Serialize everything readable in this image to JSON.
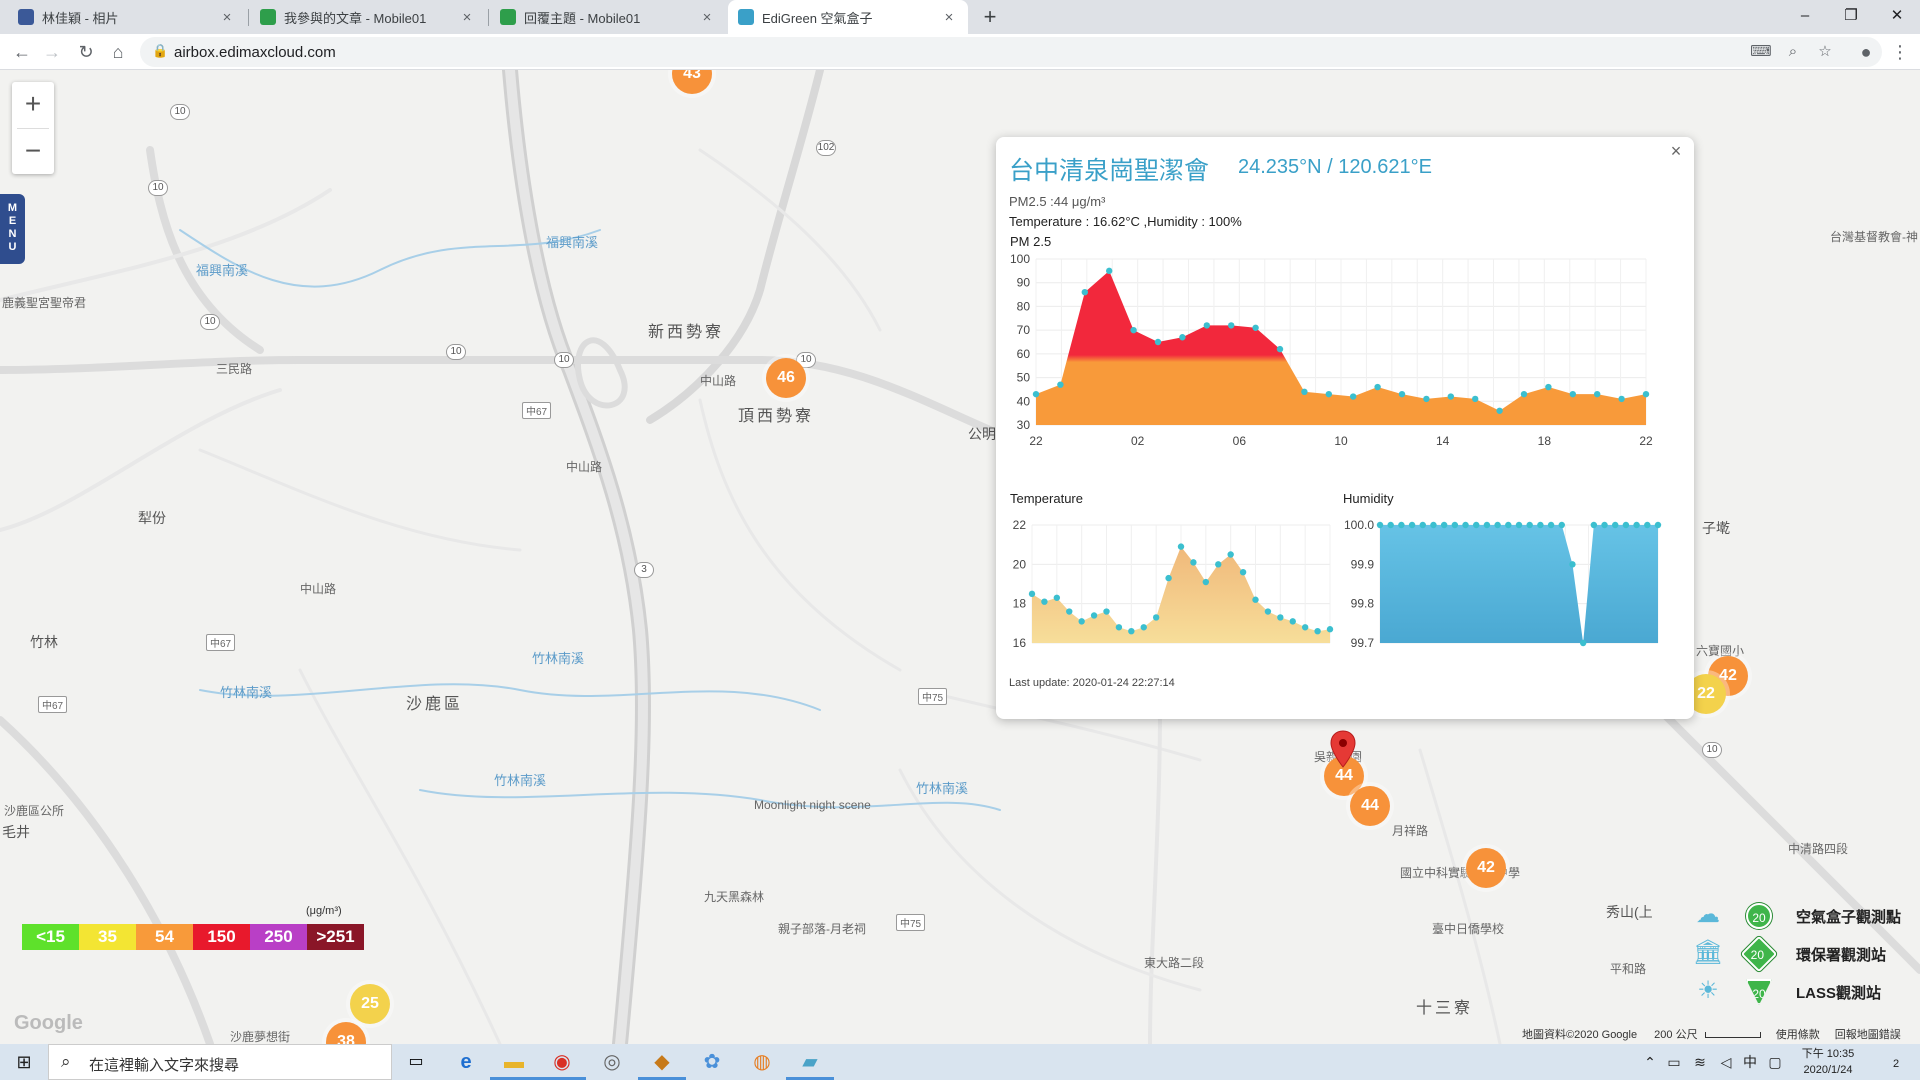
{
  "browser": {
    "tabs": [
      {
        "title": "林佳穎 - 相片",
        "favicon_color": "#3b5998",
        "active": false
      },
      {
        "title": "我參與的文章 - Mobile01",
        "favicon_color": "#2e9e4b",
        "active": false
      },
      {
        "title": "回覆主題 - Mobile01",
        "favicon_color": "#2e9e4b",
        "active": false
      },
      {
        "title": "EdiGreen 空氣盒子",
        "favicon_color": "#3aa0c8",
        "active": true
      }
    ],
    "tab_close": "×",
    "new_tab": "+",
    "url": "airbox.edimaxcloud.com",
    "window_controls": {
      "minimize": "–",
      "restore": "❐",
      "close": "✕"
    }
  },
  "map": {
    "zoom_in": "+",
    "zoom_out": "−",
    "menu_label": "MENU",
    "labels": {
      "area_1": "新西勢寮",
      "area_2": "頂西勢寮",
      "area_3": "沙鹿區",
      "area_4": "犁份",
      "area_5": "竹林",
      "area_6": "毛井",
      "area_7": "十三寮",
      "area_8": "秀山(上",
      "area_9": "子墘",
      "area_10": "公明",
      "river_1": "竹林南溪",
      "river_2": "竹林南溪",
      "river_3": "竹林南溪",
      "river_4": "竹林南溪",
      "river_5": "福興南溪",
      "river_6": "福興南溪",
      "place_1": "鹿義聖宮聖帝君",
      "place_2": "沙鹿區公所",
      "place_3": "Moonlight night scene",
      "place_4": "九天黑森林",
      "place_5": "親子部落-月老祠",
      "place_6": "國立中科實驗高級中學",
      "place_7": "臺中日僑學校",
      "place_8": "台灣基督教會-神",
      "place_9": "六寶國小",
      "place_10": "沙鹿夢想街",
      "place_11": "吳親公園",
      "road_1": "中山路",
      "road_2": "中山路",
      "road_3": "中山路",
      "road_4": "三民路",
      "road_5": "中清路四段",
      "road_6": "月祥路",
      "road_7": "東大路二段",
      "road_8": "平和路"
    },
    "shields": [
      "10",
      "10",
      "10",
      "10",
      "10",
      "10",
      "102",
      "3",
      "10"
    ],
    "rect_shields": [
      "中67",
      "中67",
      "中67",
      "中75",
      "中75"
    ],
    "markers": [
      {
        "value": "43",
        "color": "orange"
      },
      {
        "value": "46",
        "color": "orange"
      },
      {
        "value": "44",
        "color": "orange"
      },
      {
        "value": "44",
        "color": "orange"
      },
      {
        "value": "42",
        "color": "orange"
      },
      {
        "value": "42",
        "color": "orange"
      },
      {
        "value": "22",
        "color": "yellow"
      },
      {
        "value": "25",
        "color": "yellow"
      },
      {
        "value": "38",
        "color": "orange"
      }
    ]
  },
  "popup": {
    "title": "台中清泉崗聖潔會",
    "coords": "24.235°N / 120.621°E",
    "pm_line": "PM2.5 :44 μg/m³",
    "temp_line": "Temperature : 16.62°C ,Humidity : 100%",
    "pm_chart_title": "PM 2.5",
    "temp_chart_title": "Temperature",
    "hum_chart_title": "Humidity",
    "last_update": "Last update: 2020-01-24 22:27:14",
    "close": "×"
  },
  "chart_data": [
    {
      "type": "area",
      "title": "PM 2.5",
      "x_tick_labels": [
        "22",
        "02",
        "06",
        "10",
        "14",
        "18",
        "22"
      ],
      "y_ticks": [
        30,
        40,
        50,
        60,
        70,
        80,
        90,
        100
      ],
      "ylim": [
        30,
        100
      ],
      "values": [
        43,
        47,
        86,
        95,
        70,
        65,
        67,
        72,
        72,
        71,
        62,
        44,
        43,
        42,
        46,
        43,
        41,
        42,
        41,
        36,
        43,
        46,
        43,
        43,
        41,
        43
      ],
      "colors": {
        "high": "#f2283c",
        "low": "#f89a3a",
        "point": "#3bbfcf"
      }
    },
    {
      "type": "area",
      "title": "Temperature",
      "y_ticks": [
        16,
        18,
        20,
        22
      ],
      "ylim": [
        16,
        22
      ],
      "values": [
        18.5,
        18.1,
        18.3,
        17.6,
        17.1,
        17.4,
        17.6,
        16.8,
        16.6,
        16.8,
        17.3,
        19.3,
        20.9,
        20.1,
        19.1,
        20.0,
        20.5,
        19.6,
        18.2,
        17.6,
        17.3,
        17.1,
        16.8,
        16.6,
        16.7
      ],
      "colors": {
        "fill": "#f5cf7d",
        "point": "#3bbfcf"
      }
    },
    {
      "type": "area",
      "title": "Humidity",
      "y_ticks": [
        "99.7",
        "99.8",
        "99.9",
        "100.0"
      ],
      "ylim": [
        99.7,
        100.0
      ],
      "values": [
        100,
        100,
        100,
        100,
        100,
        100,
        100,
        100,
        100,
        100,
        100,
        100,
        100,
        100,
        100,
        100,
        100,
        100,
        99.9,
        99.7,
        100,
        100,
        100,
        100,
        100,
        100,
        100
      ],
      "colors": {
        "fill": "#5ab8de",
        "point": "#3bbfcf"
      }
    }
  ],
  "legend": {
    "unit": "(μg/m³)",
    "items": [
      {
        "label": "<15",
        "color": "#5ee12b"
      },
      {
        "label": "35",
        "color": "#f3e533"
      },
      {
        "label": "54",
        "color": "#f89a3a"
      },
      {
        "label": "150",
        "color": "#e8192c"
      },
      {
        "label": "250",
        "color": "#b93fc6"
      },
      {
        "label": ">251",
        "color": "#8a1628"
      }
    ]
  },
  "stations": [
    {
      "value": "20",
      "label": "空氣盒子觀測點",
      "icon": "airbox-icon"
    },
    {
      "value": "20",
      "label": "環保署觀測站",
      "icon": "government-building-icon"
    },
    {
      "value": "20",
      "label": "LASS觀測站",
      "icon": "lass-icon"
    }
  ],
  "map_footer": {
    "google": "Google",
    "credit": "地圖資料©2020 Google",
    "scale": "200 公尺",
    "terms": "使用條款",
    "report": "回報地圖錯誤"
  },
  "taskbar": {
    "search_placeholder": "在這裡輸入文字來搜尋",
    "ime": "中",
    "time": "下午 10:35",
    "date": "2020/1/24",
    "notifications": "2"
  }
}
